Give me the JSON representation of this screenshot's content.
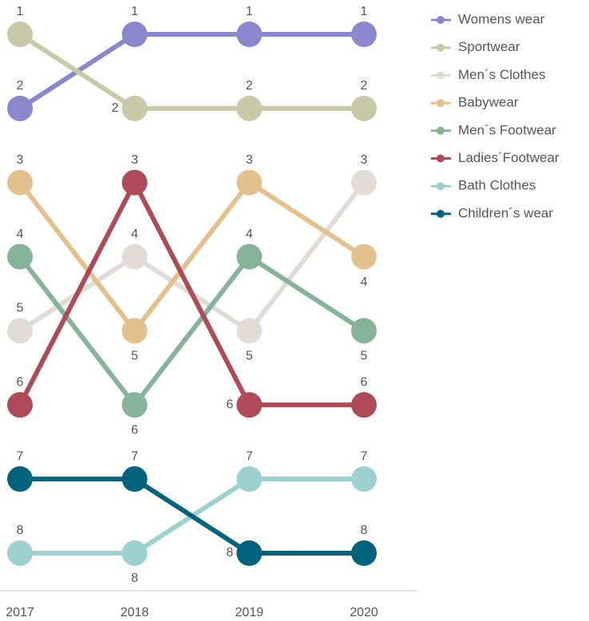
{
  "chart_data": {
    "type": "bump",
    "categories": [
      "2017",
      "2018",
      "2019",
      "2020"
    ],
    "ylim": [
      8,
      1
    ],
    "legend": "top-right",
    "series": [
      {
        "name": "Womens wear",
        "color": "#8b87cc",
        "values": [
          2,
          1,
          1,
          1
        ]
      },
      {
        "name": "Sportwear",
        "color": "#c8c9a6",
        "values": [
          1,
          2,
          2,
          2
        ]
      },
      {
        "name": "Men´s Clothes",
        "color": "#e2dcd8",
        "values": [
          5,
          4,
          5,
          3
        ]
      },
      {
        "name": "Babywear",
        "color": "#e3c18e",
        "values": [
          3,
          5,
          3,
          4
        ]
      },
      {
        "name": "Men´s Footwear",
        "color": "#86b39a",
        "values": [
          4,
          6,
          4,
          5
        ]
      },
      {
        "name": "Ladies´Footwear",
        "color": "#ad4c58",
        "values": [
          6,
          3,
          6,
          6
        ]
      },
      {
        "name": "Bath Clothes",
        "color": "#9dd1cf",
        "values": [
          8,
          8,
          7,
          7
        ]
      },
      {
        "name": "Children´s wear",
        "color": "#01627d",
        "values": [
          7,
          7,
          8,
          8
        ]
      }
    ]
  }
}
